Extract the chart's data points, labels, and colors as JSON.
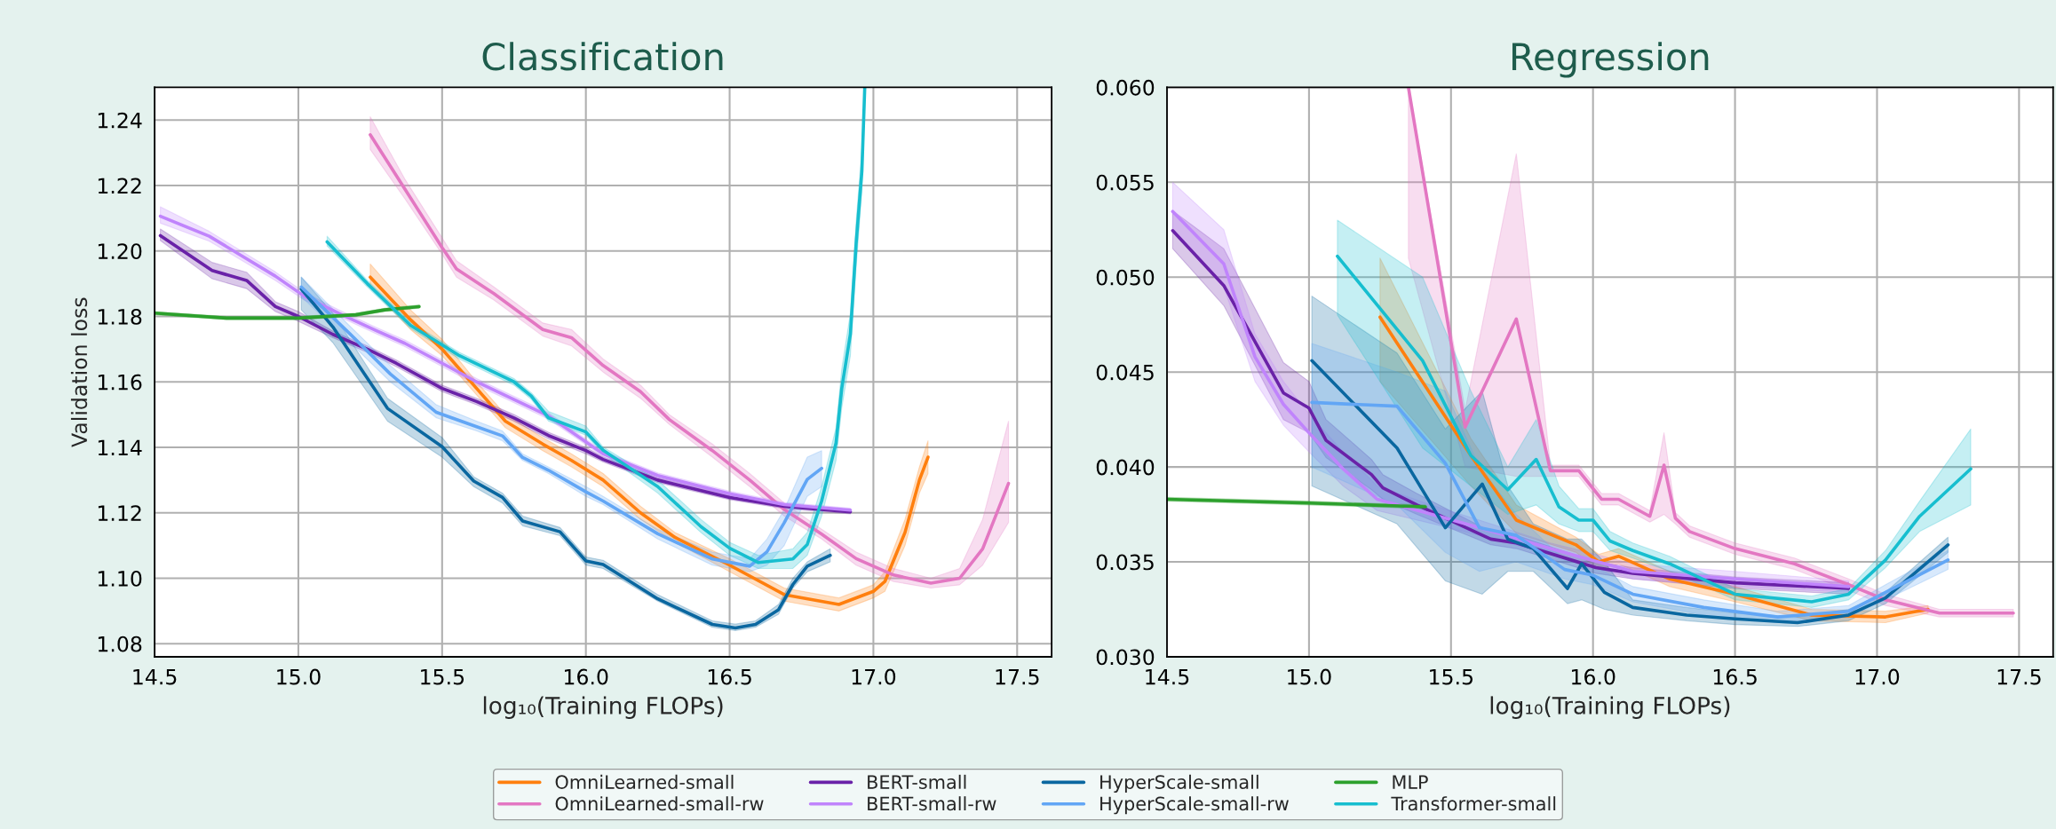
{
  "chart_data": [
    {
      "type": "line",
      "title": "Classification",
      "xlabel": "log₁₀(Training FLOPs)",
      "ylabel": "Validation loss",
      "xlim": [
        14.5,
        17.62
      ],
      "ylim": [
        1.076,
        1.25
      ],
      "xticks": [
        {
          "value": 14.5,
          "label": "14.5"
        },
        {
          "value": 15,
          "label": "15.0"
        },
        {
          "value": 15.5,
          "label": "15.5"
        },
        {
          "value": 16,
          "label": "16.0"
        },
        {
          "value": 16.5,
          "label": "16.5"
        },
        {
          "value": 17,
          "label": "17.0"
        },
        {
          "value": 17.5,
          "label": "17.5"
        }
      ],
      "yticks": [
        {
          "value": 1.08,
          "label": "1.08"
        },
        {
          "value": 1.1,
          "label": "1.10"
        },
        {
          "value": 1.12,
          "label": "1.12"
        },
        {
          "value": 1.14,
          "label": "1.14"
        },
        {
          "value": 1.16,
          "label": "1.16"
        },
        {
          "value": 1.18,
          "label": "1.18"
        },
        {
          "value": 1.2,
          "label": "1.20"
        },
        {
          "value": 1.22,
          "label": "1.22"
        },
        {
          "value": 1.24,
          "label": "1.24"
        }
      ],
      "grid": true,
      "legend": "bottom",
      "series": [
        {
          "name": "OmniLearned-small",
          "color": "#ff7f0e",
          "x": [
            15.25,
            15.39,
            15.5,
            15.62,
            15.72,
            15.85,
            15.95,
            16.06,
            16.19,
            16.31,
            16.5,
            16.69,
            16.88,
            17.0,
            17.04,
            17.11,
            17.16,
            17.19
          ],
          "values": [
            1.192,
            1.179,
            1.17,
            1.158,
            1.148,
            1.141,
            1.136,
            1.13,
            1.12,
            1.1125,
            1.104,
            1.095,
            1.092,
            1.096,
            1.099,
            1.114,
            1.13,
            1.137
          ],
          "lower": [
            1.189,
            1.176,
            1.168,
            1.156,
            1.146,
            1.139,
            1.134,
            1.128,
            1.118,
            1.111,
            1.102,
            1.093,
            1.09,
            1.094,
            1.096,
            1.11,
            1.126,
            1.132
          ],
          "upper": [
            1.196,
            1.182,
            1.173,
            1.16,
            1.15,
            1.143,
            1.138,
            1.132,
            1.122,
            1.114,
            1.106,
            1.097,
            1.094,
            1.098,
            1.102,
            1.118,
            1.134,
            1.142
          ]
        },
        {
          "name": "OmniLearned-small-rw",
          "color": "#e377c2",
          "x": [
            15.25,
            15.37,
            15.5,
            15.55,
            15.68,
            15.85,
            15.95,
            16.06,
            16.19,
            16.29,
            16.44,
            16.57,
            16.69,
            16.82,
            16.94,
            17.07,
            17.2,
            17.3,
            17.38,
            17.47
          ],
          "values": [
            1.2355,
            1.219,
            1.201,
            1.1945,
            1.187,
            1.176,
            1.1735,
            1.165,
            1.157,
            1.1485,
            1.139,
            1.13,
            1.121,
            1.1135,
            1.106,
            1.101,
            1.0985,
            1.1,
            1.109,
            1.129
          ],
          "lower": [
            1.231,
            1.216,
            1.199,
            1.192,
            1.185,
            1.174,
            1.171,
            1.163,
            1.155,
            1.147,
            1.137,
            1.128,
            1.119,
            1.112,
            1.104,
            1.099,
            1.097,
            1.098,
            1.104,
            1.117
          ],
          "upper": [
            1.241,
            1.222,
            1.204,
            1.197,
            1.189,
            1.178,
            1.176,
            1.167,
            1.159,
            1.15,
            1.141,
            1.132,
            1.123,
            1.115,
            1.108,
            1.103,
            1.1,
            1.103,
            1.118,
            1.148
          ]
        },
        {
          "name": "BERT-small",
          "color": "#6a22a8",
          "x": [
            14.52,
            14.7,
            14.82,
            14.92,
            15.0,
            15.12,
            15.24,
            15.34,
            15.5,
            15.62,
            15.75,
            15.87,
            16.0,
            16.06,
            16.25,
            16.5,
            16.69,
            16.92
          ],
          "values": [
            1.2047,
            1.194,
            1.191,
            1.183,
            1.18,
            1.1745,
            1.17,
            1.1657,
            1.158,
            1.154,
            1.149,
            1.1436,
            1.139,
            1.1363,
            1.13,
            1.1247,
            1.122,
            1.1203
          ],
          "lower": [
            1.2032,
            1.1915,
            1.1885,
            1.1815,
            1.1785,
            1.1735,
            1.169,
            1.1647,
            1.157,
            1.153,
            1.148,
            1.1426,
            1.138,
            1.1355,
            1.1292,
            1.124,
            1.1213,
            1.1197
          ],
          "upper": [
            1.2067,
            1.1965,
            1.1935,
            1.1845,
            1.1815,
            1.1755,
            1.171,
            1.1667,
            1.159,
            1.155,
            1.15,
            1.1446,
            1.14,
            1.1371,
            1.1308,
            1.1254,
            1.1227,
            1.1209
          ]
        },
        {
          "name": "BERT-small-rw",
          "color": "#c084fc",
          "x": [
            14.52,
            14.69,
            14.92,
            15.02,
            15.14,
            15.27,
            15.37,
            15.5,
            15.62,
            15.75,
            15.87,
            16.06,
            16.25,
            16.5,
            16.69,
            16.92
          ],
          "values": [
            1.2106,
            1.2045,
            1.1923,
            1.1862,
            1.181,
            1.1757,
            1.1718,
            1.1657,
            1.16,
            1.1546,
            1.1496,
            1.138,
            1.1314,
            1.1258,
            1.1225,
            1.1208
          ],
          "lower": [
            1.2085,
            1.203,
            1.191,
            1.185,
            1.18,
            1.1747,
            1.1708,
            1.1647,
            1.159,
            1.1536,
            1.1486,
            1.1372,
            1.1306,
            1.125,
            1.1218,
            1.1202
          ],
          "upper": [
            1.2135,
            1.206,
            1.1936,
            1.1874,
            1.182,
            1.1767,
            1.1728,
            1.1667,
            1.161,
            1.1556,
            1.1506,
            1.1388,
            1.1322,
            1.1266,
            1.1232,
            1.1214
          ]
        },
        {
          "name": "HyperScale-small",
          "color": "#0a67a0",
          "x": [
            15.01,
            15.12,
            15.31,
            15.5,
            15.61,
            15.71,
            15.78,
            15.91,
            16.0,
            16.06,
            16.25,
            16.44,
            16.52,
            16.59,
            16.67,
            16.72,
            16.77,
            16.85
          ],
          "values": [
            1.1884,
            1.1768,
            1.1519,
            1.1402,
            1.1297,
            1.1247,
            1.1175,
            1.1142,
            1.1053,
            1.1042,
            1.0937,
            1.0859,
            1.0848,
            1.0859,
            1.0904,
            1.0981,
            1.1037,
            1.107
          ],
          "lower": [
            1.182,
            1.172,
            1.148,
            1.137,
            1.128,
            1.123,
            1.116,
            1.113,
            1.104,
            1.103,
            1.093,
            1.085,
            1.084,
            1.085,
            1.089,
            1.097,
            1.102,
            1.105
          ],
          "upper": [
            1.192,
            1.181,
            1.155,
            1.143,
            1.131,
            1.126,
            1.119,
            1.1155,
            1.1065,
            1.1055,
            1.095,
            1.087,
            1.086,
            1.087,
            1.092,
            1.1,
            1.105,
            1.109
          ]
        },
        {
          "name": "HyperScale-small-rw",
          "color": "#62a6f5",
          "x": [
            15.01,
            15.18,
            15.32,
            15.48,
            15.62,
            15.71,
            15.78,
            15.87,
            16.0,
            16.06,
            16.25,
            16.44,
            16.57,
            16.63,
            16.69,
            16.77,
            16.82
          ],
          "values": [
            1.189,
            1.1746,
            1.1624,
            1.1507,
            1.1463,
            1.1435,
            1.1369,
            1.133,
            1.1264,
            1.1236,
            1.1136,
            1.1059,
            1.1037,
            1.1081,
            1.117,
            1.1302,
            1.1336
          ],
          "lower": [
            1.186,
            1.172,
            1.16,
            1.149,
            1.145,
            1.142,
            1.136,
            1.132,
            1.125,
            1.1225,
            1.112,
            1.104,
            1.102,
            1.104,
            1.11,
            1.125,
            1.128
          ],
          "upper": [
            1.192,
            1.177,
            1.165,
            1.153,
            1.148,
            1.145,
            1.138,
            1.134,
            1.128,
            1.125,
            1.115,
            1.108,
            1.106,
            1.112,
            1.121,
            1.137,
            1.139
          ]
        },
        {
          "name": "MLP",
          "color": "#2ca02c",
          "x": [
            14.5,
            14.75,
            15.0,
            15.2,
            15.3,
            15.42
          ],
          "values": [
            1.181,
            1.1795,
            1.1795,
            1.1805,
            1.182,
            1.183
          ],
          "lower": [
            1.1805,
            1.179,
            1.179,
            1.18,
            1.1815,
            1.1825
          ],
          "upper": [
            1.1815,
            1.18,
            1.18,
            1.181,
            1.1825,
            1.1835
          ]
        },
        {
          "name": "Transformer-small",
          "color": "#17becf",
          "x": [
            15.1,
            15.24,
            15.39,
            15.56,
            15.75,
            15.81,
            15.87,
            16.0,
            16.06,
            16.25,
            16.4,
            16.5,
            16.6,
            16.72,
            16.77,
            16.82,
            16.87,
            16.89,
            16.92,
            16.94,
            16.96,
            16.97
          ],
          "values": [
            1.2028,
            1.19,
            1.1773,
            1.168,
            1.16,
            1.1557,
            1.149,
            1.1447,
            1.1391,
            1.128,
            1.1158,
            1.1092,
            1.1048,
            1.1059,
            1.1103,
            1.1236,
            1.1413,
            1.158,
            1.1746,
            1.2023,
            1.2244,
            1.25
          ],
          "lower": [
            1.2015,
            1.189,
            1.1763,
            1.167,
            1.159,
            1.1547,
            1.148,
            1.1437,
            1.1381,
            1.126,
            1.114,
            1.107,
            1.103,
            1.103,
            1.107,
            1.119,
            1.136,
            1.152,
            1.168,
            1.195,
            1.218,
            1.245
          ],
          "upper": [
            1.2045,
            1.191,
            1.1783,
            1.169,
            1.161,
            1.1567,
            1.151,
            1.1465,
            1.1401,
            1.13,
            1.118,
            1.111,
            1.107,
            1.109,
            1.114,
            1.128,
            1.146,
            1.164,
            1.181,
            1.209,
            1.231,
            1.25
          ]
        }
      ]
    },
    {
      "type": "line",
      "title": "Regression",
      "xlabel": "log₁₀(Training FLOPs)",
      "xlim": [
        14.5,
        17.62
      ],
      "ylim": [
        0.03,
        0.06
      ],
      "xticks": [
        {
          "value": 14.5,
          "label": "14.5"
        },
        {
          "value": 15,
          "label": "15.0"
        },
        {
          "value": 15.5,
          "label": "15.5"
        },
        {
          "value": 16,
          "label": "16.0"
        },
        {
          "value": 16.5,
          "label": "16.5"
        },
        {
          "value": 17,
          "label": "17.0"
        },
        {
          "value": 17.5,
          "label": "17.5"
        }
      ],
      "yticks": [
        {
          "value": 0.03,
          "label": "0.030"
        },
        {
          "value": 0.035,
          "label": "0.035"
        },
        {
          "value": 0.04,
          "label": "0.040"
        },
        {
          "value": 0.045,
          "label": "0.045"
        },
        {
          "value": 0.05,
          "label": "0.050"
        },
        {
          "value": 0.055,
          "label": "0.055"
        },
        {
          "value": 0.06,
          "label": "0.060"
        }
      ],
      "grid": true,
      "legend": "bottom",
      "series": [
        {
          "name": "OmniLearned-small",
          "color": "#ff7f0e",
          "x": [
            15.25,
            15.57,
            15.73,
            15.94,
            16.02,
            16.09,
            16.27,
            16.5,
            16.77,
            17.03,
            17.18
          ],
          "values": [
            0.0479,
            0.0406,
            0.0372,
            0.0359,
            0.035,
            0.0353,
            0.0341,
            0.0333,
            0.0322,
            0.0321,
            0.0325
          ],
          "lower": [
            0.0445,
            0.039,
            0.0365,
            0.0355,
            0.0346,
            0.0349,
            0.0337,
            0.0329,
            0.0319,
            0.0318,
            0.0323
          ],
          "upper": [
            0.051,
            0.0415,
            0.038,
            0.0363,
            0.0354,
            0.0357,
            0.0345,
            0.0337,
            0.0325,
            0.0324,
            0.0327
          ]
        },
        {
          "name": "OmniLearned-small-rw",
          "color": "#e377c2",
          "x": [
            15.35,
            15.55,
            15.73,
            15.85,
            15.95,
            16.03,
            16.09,
            16.2,
            16.25,
            16.29,
            16.34,
            16.5,
            16.71,
            16.9,
            17.03,
            17.22,
            17.48
          ],
          "values": [
            0.06,
            0.0421,
            0.0478,
            0.0398,
            0.0398,
            0.0383,
            0.0383,
            0.0374,
            0.0401,
            0.0373,
            0.0366,
            0.0357,
            0.0349,
            0.0338,
            0.033,
            0.0323,
            0.0323
          ],
          "lower": [
            0.051,
            0.04,
            0.0395,
            0.0395,
            0.0395,
            0.038,
            0.038,
            0.0371,
            0.0375,
            0.037,
            0.0363,
            0.0354,
            0.0346,
            0.0335,
            0.0327,
            0.0321,
            0.0321
          ],
          "upper": [
            0.06,
            0.043,
            0.0565,
            0.0401,
            0.0401,
            0.0386,
            0.0386,
            0.0377,
            0.0418,
            0.0376,
            0.0369,
            0.036,
            0.0352,
            0.0341,
            0.0333,
            0.0325,
            0.0325
          ]
        },
        {
          "name": "BERT-small",
          "color": "#6a22a8",
          "x": [
            14.52,
            14.7,
            14.91,
            15.0,
            15.06,
            15.22,
            15.26,
            15.38,
            15.51,
            15.64,
            15.73,
            16.01,
            16.14,
            16.5,
            16.9
          ],
          "values": [
            0.05245,
            0.04956,
            0.0439,
            0.0431,
            0.0414,
            0.0396,
            0.0389,
            0.038,
            0.0371,
            0.0362,
            0.036,
            0.0347,
            0.0344,
            0.0339,
            0.0336
          ],
          "lower": [
            0.0515,
            0.0485,
            0.0425,
            0.0418,
            0.0405,
            0.0388,
            0.0383,
            0.0375,
            0.0367,
            0.0359,
            0.0357,
            0.0344,
            0.0341,
            0.0336,
            0.0333
          ],
          "upper": [
            0.0535,
            0.0515,
            0.0455,
            0.0445,
            0.0425,
            0.0404,
            0.0396,
            0.0386,
            0.0376,
            0.0366,
            0.0364,
            0.035,
            0.0347,
            0.0342,
            0.0339
          ]
        },
        {
          "name": "BERT-small-rw",
          "color": "#c084fc",
          "x": [
            14.52,
            14.7,
            14.81,
            14.91,
            15.0,
            15.12,
            15.24,
            15.41,
            15.6,
            15.85,
            16.14,
            16.5,
            16.9
          ],
          "values": [
            0.05346,
            0.0507,
            0.0458,
            0.0433,
            0.0418,
            0.0399,
            0.0383,
            0.0376,
            0.0368,
            0.0357,
            0.0345,
            0.0341,
            0.0337
          ],
          "lower": [
            0.0525,
            0.0495,
            0.0445,
            0.0422,
            0.0408,
            0.039,
            0.0377,
            0.0371,
            0.0364,
            0.0354,
            0.0341,
            0.0337,
            0.0334
          ],
          "upper": [
            0.055,
            0.0525,
            0.047,
            0.0445,
            0.0428,
            0.0408,
            0.039,
            0.0381,
            0.0372,
            0.036,
            0.0349,
            0.0345,
            0.034
          ]
        },
        {
          "name": "HyperScale-small",
          "color": "#0a67a0",
          "x": [
            15.01,
            15.31,
            15.48,
            15.61,
            15.7,
            15.79,
            15.91,
            15.96,
            16.04,
            16.14,
            16.33,
            16.5,
            16.72,
            16.9,
            17.03,
            17.25
          ],
          "values": [
            0.0456,
            0.041,
            0.0368,
            0.0391,
            0.0362,
            0.0357,
            0.0336,
            0.0349,
            0.0334,
            0.0326,
            0.0322,
            0.032,
            0.0318,
            0.0322,
            0.0331,
            0.0359
          ],
          "lower": [
            0.039,
            0.037,
            0.034,
            0.0333,
            0.0345,
            0.0345,
            0.0328,
            0.033,
            0.0325,
            0.0322,
            0.0319,
            0.0317,
            0.0316,
            0.0319,
            0.0328,
            0.0355
          ],
          "upper": [
            0.049,
            0.046,
            0.042,
            0.044,
            0.039,
            0.037,
            0.0362,
            0.0362,
            0.035,
            0.033,
            0.0326,
            0.0323,
            0.0321,
            0.0325,
            0.0334,
            0.0363
          ]
        },
        {
          "name": "HyperScale-small-rw",
          "color": "#62a6f5",
          "x": [
            15.01,
            15.31,
            15.48,
            15.6,
            15.73,
            15.9,
            16.0,
            16.14,
            16.39,
            16.65,
            16.9,
            17.03,
            17.25
          ],
          "values": [
            0.0434,
            0.0432,
            0.0402,
            0.0368,
            0.0364,
            0.0346,
            0.0343,
            0.0333,
            0.0326,
            0.0321,
            0.0324,
            0.0334,
            0.0351
          ],
          "lower": [
            0.04,
            0.038,
            0.0355,
            0.0345,
            0.035,
            0.0341,
            0.0338,
            0.0329,
            0.0322,
            0.0318,
            0.0321,
            0.033,
            0.0346
          ],
          "upper": [
            0.0465,
            0.045,
            0.044,
            0.04,
            0.0375,
            0.0351,
            0.0348,
            0.0337,
            0.033,
            0.0324,
            0.0327,
            0.0338,
            0.0356
          ]
        },
        {
          "name": "MLP",
          "color": "#2ca02c",
          "x": [
            14.5,
            15.0,
            15.41
          ],
          "values": [
            0.0383,
            0.0381,
            0.0379
          ],
          "lower": [
            0.0382,
            0.038,
            0.0378
          ],
          "upper": [
            0.0384,
            0.0382,
            0.038
          ]
        },
        {
          "name": "Transformer-small",
          "color": "#17becf",
          "x": [
            15.1,
            15.4,
            15.57,
            15.7,
            15.8,
            15.88,
            15.95,
            16.0,
            16.06,
            16.14,
            16.27,
            16.5,
            16.77,
            16.9,
            17.03,
            17.15,
            17.33
          ],
          "values": [
            0.0511,
            0.0456,
            0.0406,
            0.0388,
            0.0404,
            0.0379,
            0.0372,
            0.0372,
            0.0361,
            0.0356,
            0.0349,
            0.0333,
            0.0329,
            0.0333,
            0.0351,
            0.0374,
            0.0399
          ],
          "lower": [
            0.048,
            0.041,
            0.039,
            0.0375,
            0.038,
            0.037,
            0.0366,
            0.0366,
            0.0356,
            0.0352,
            0.0345,
            0.033,
            0.0326,
            0.033,
            0.0347,
            0.0366,
            0.038
          ],
          "upper": [
            0.053,
            0.05,
            0.044,
            0.04,
            0.0425,
            0.039,
            0.0378,
            0.0378,
            0.0366,
            0.036,
            0.0353,
            0.0336,
            0.0332,
            0.0336,
            0.0356,
            0.0382,
            0.042
          ]
        }
      ]
    }
  ]
}
